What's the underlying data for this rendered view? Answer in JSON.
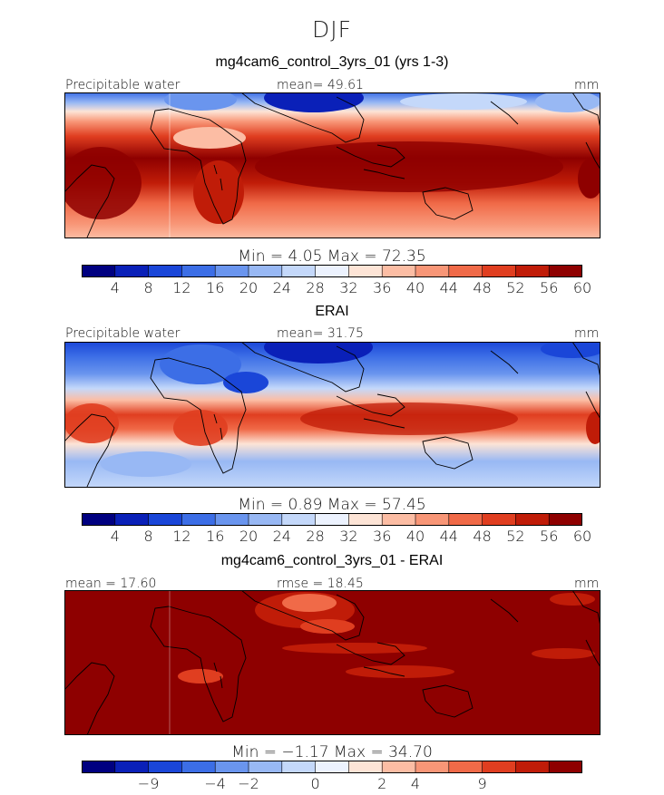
{
  "figure": {
    "season": "DJF"
  },
  "chart_data": [
    {
      "type": "heatmap",
      "title": "mg4cam6_control_3yrs_01 (yrs 1-3)",
      "left_label": "Precipitable water",
      "center_label": "mean=  49.61",
      "units": "mm",
      "minmax_label": "Min =    4.05  Max =   72.35",
      "mean": 49.61,
      "min": 4.05,
      "max": 72.35,
      "colorbar": {
        "levels": [
          4,
          8,
          12,
          16,
          20,
          24,
          28,
          32,
          36,
          40,
          44,
          48,
          52,
          56,
          60
        ],
        "tick_labels": [
          "4",
          "8",
          "12",
          "16",
          "20",
          "24",
          "28",
          "32",
          "36",
          "40",
          "44",
          "48",
          "52",
          "56",
          "60"
        ],
        "colors": [
          "#000080",
          "#0a20b8",
          "#1a46d8",
          "#3c6ee6",
          "#6a95ee",
          "#98b8f4",
          "#c4d8fa",
          "#ecf2fe",
          "#fde4d6",
          "#fcbda4",
          "#f89677",
          "#f06a48",
          "#e03e20",
          "#c01c08",
          "#8e0000"
        ]
      }
    },
    {
      "type": "heatmap",
      "title": "ERAI",
      "left_label": "Precipitable water",
      "center_label": "mean=  31.75",
      "units": "mm",
      "minmax_label": "Min =    0.89  Max =   57.45",
      "mean": 31.75,
      "min": 0.89,
      "max": 57.45,
      "colorbar": {
        "levels": [
          4,
          8,
          12,
          16,
          20,
          24,
          28,
          32,
          36,
          40,
          44,
          48,
          52,
          56,
          60
        ],
        "tick_labels": [
          "4",
          "8",
          "12",
          "16",
          "20",
          "24",
          "28",
          "32",
          "36",
          "40",
          "44",
          "48",
          "52",
          "56",
          "60"
        ],
        "colors": [
          "#000080",
          "#0a20b8",
          "#1a46d8",
          "#3c6ee6",
          "#6a95ee",
          "#98b8f4",
          "#c4d8fa",
          "#ecf2fe",
          "#fde4d6",
          "#fcbda4",
          "#f89677",
          "#f06a48",
          "#e03e20",
          "#c01c08",
          "#8e0000"
        ]
      }
    },
    {
      "type": "heatmap",
      "title": "mg4cam6_control_3yrs_01 - ERAI",
      "left_label": "mean =   17.60",
      "center_label": "rmse =   18.45",
      "units": "mm",
      "minmax_label": "Min =   −1.17  Max =   34.70",
      "mean": 17.6,
      "rmse": 18.45,
      "min": -1.17,
      "max": 34.7,
      "colorbar": {
        "tick_labels": [
          "−9",
          "−4",
          "−2",
          "0",
          "2",
          "4",
          "9"
        ],
        "colors": [
          "#000080",
          "#0a20b8",
          "#1a46d8",
          "#3c6ee6",
          "#6a95ee",
          "#98b8f4",
          "#c4d8fa",
          "#ecf2fe",
          "#fde4d6",
          "#fcbda4",
          "#f89677",
          "#f06a48",
          "#e03e20",
          "#c01c08",
          "#8e0000"
        ]
      }
    }
  ]
}
